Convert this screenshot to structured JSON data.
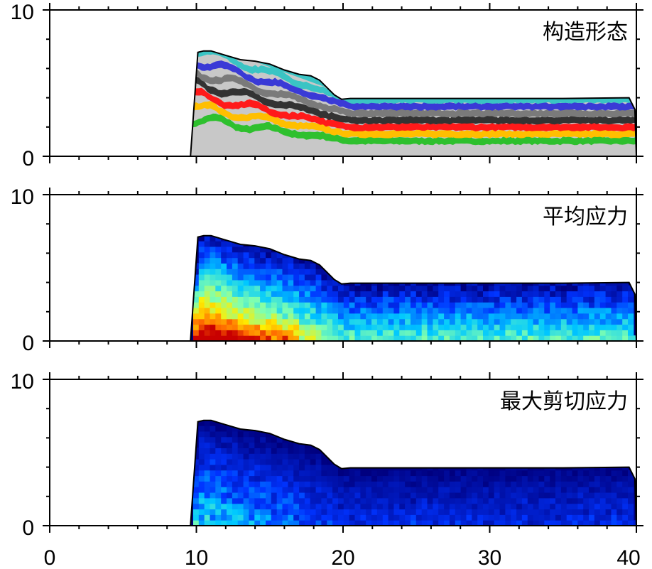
{
  "chart_data": [
    {
      "type": "heatmap",
      "panel_label": "构造形态",
      "fill": "layers",
      "xlim": [
        0,
        40
      ],
      "ylim": [
        0,
        10
      ],
      "yticks": [
        "0",
        "10"
      ],
      "surface": {
        "x": [
          9.6,
          10.1,
          10.5,
          11.0,
          12.0,
          13.0,
          14.0,
          15.0,
          16.0,
          17.0,
          17.8,
          18.4,
          19.0,
          19.4,
          19.9,
          20.5,
          25.0,
          30.0,
          35.0,
          39.5,
          39.9,
          40.0
        ],
        "y": [
          0.0,
          7.1,
          7.2,
          7.2,
          6.9,
          6.6,
          6.5,
          6.3,
          5.9,
          5.6,
          5.5,
          5.2,
          4.6,
          4.2,
          3.9,
          3.95,
          3.95,
          3.95,
          3.95,
          4.0,
          3.2,
          0.0
        ]
      },
      "layer_colors": [
        "#c8c8c8",
        "#2ec02e",
        "#ffbf00",
        "#ff1a1a",
        "#333333",
        "#7a7a7a",
        "#3a3ad6",
        "#3ac4c4"
      ]
    },
    {
      "type": "heatmap",
      "panel_label": "平均应力",
      "fill": "mean-stress",
      "xlim": [
        0,
        40
      ],
      "ylim": [
        0,
        10
      ],
      "yticks": [
        "0",
        "10"
      ],
      "surface": {
        "x": [
          9.6,
          10.1,
          10.5,
          11.0,
          12.0,
          13.0,
          14.0,
          15.0,
          16.0,
          17.0,
          17.8,
          18.4,
          19.0,
          19.4,
          19.9,
          20.5,
          25.0,
          30.0,
          35.0,
          39.5,
          39.9,
          40.0
        ],
        "y": [
          0.0,
          7.1,
          7.2,
          7.2,
          6.9,
          6.6,
          6.5,
          6.3,
          5.9,
          5.6,
          5.5,
          5.2,
          4.6,
          4.2,
          3.9,
          3.95,
          3.95,
          3.95,
          3.95,
          4.0,
          3.2,
          0.0
        ]
      },
      "colormap": [
        "#00007f",
        "#0033ff",
        "#00c8ff",
        "#7fffb0",
        "#ffee00",
        "#ff6a00",
        "#c80000"
      ]
    },
    {
      "type": "heatmap",
      "panel_label": "最大剪切应力",
      "fill": "shear-stress",
      "xlim": [
        0,
        40
      ],
      "ylim": [
        0,
        10
      ],
      "yticks": [
        "0",
        "10"
      ],
      "xticks": [
        "0",
        "10",
        "20",
        "30",
        "40"
      ],
      "surface": {
        "x": [
          9.6,
          10.1,
          10.5,
          11.0,
          12.0,
          13.0,
          14.0,
          15.0,
          16.0,
          17.0,
          17.8,
          18.4,
          19.0,
          19.4,
          19.9,
          20.5,
          25.0,
          30.0,
          35.0,
          39.5,
          39.9,
          40.0
        ],
        "y": [
          0.0,
          7.1,
          7.2,
          7.2,
          6.9,
          6.6,
          6.5,
          6.3,
          5.9,
          5.6,
          5.5,
          5.2,
          4.6,
          4.2,
          3.9,
          3.95,
          3.95,
          3.95,
          3.95,
          4.0,
          3.2,
          0.0
        ]
      },
      "colormap": [
        "#00007f",
        "#0033ff",
        "#00c8ff",
        "#7fffb0"
      ]
    }
  ]
}
